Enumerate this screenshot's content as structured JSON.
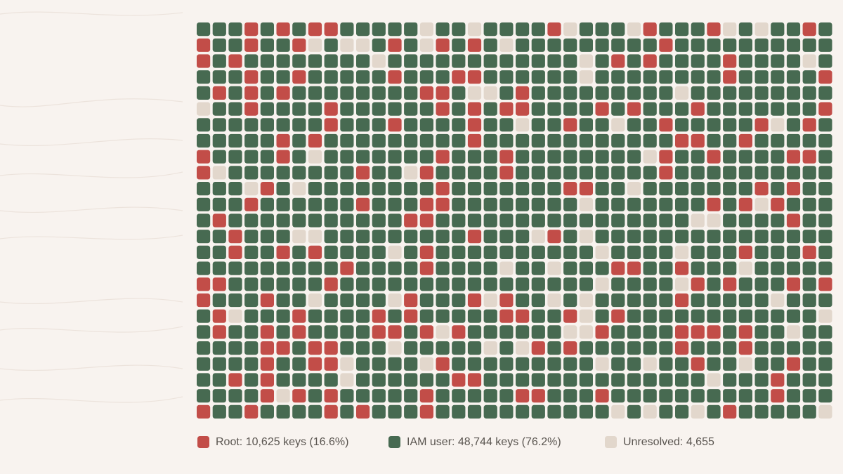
{
  "chart_data": {
    "type": "waffle",
    "series": [
      {
        "name": "Root",
        "label": "Root: 10,625 keys (16.6%)",
        "value": 10625,
        "percent": 16.6,
        "color": "#c24d48"
      },
      {
        "name": "IAM user",
        "label": "IAM user: 48,744 keys (76.2%)",
        "value": 48744,
        "percent": 76.2,
        "color": "#476a51"
      },
      {
        "name": "Unresolved",
        "label": "Unresolved: 4,655",
        "value": 4655,
        "color": "#e2d7cc"
      }
    ]
  }
}
